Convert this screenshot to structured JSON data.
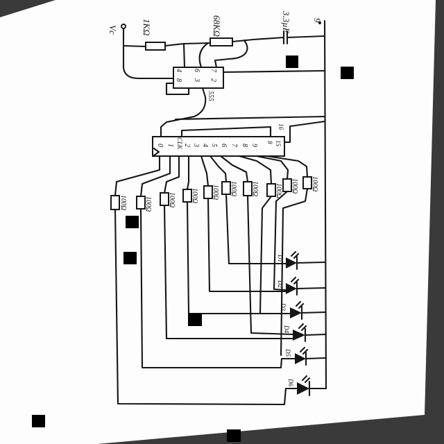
{
  "labels": {
    "vc": "Vc",
    "r_timing_1": "1KΩ",
    "r_timing_2": "68KΩ",
    "cap": "3.3µF",
    "supply": "9"
  },
  "ic555": {
    "name": "555",
    "pins": {
      "p4": "4",
      "p8": "8",
      "p6": "6",
      "p7": "7",
      "p3": "3",
      "p2": "2"
    }
  },
  "ic4017": {
    "clk": "CLK",
    "pin16": "16",
    "pin15": "15",
    "pin8": "8",
    "outputs": [
      "0",
      "1",
      "2",
      "3",
      "4",
      "5",
      "6",
      "7",
      "8",
      "9"
    ]
  },
  "resistors": [
    "100Ω",
    "100Ω",
    "100Ω",
    "100Ω",
    "100Ω",
    "100Ω",
    "100Ω",
    "100Ω",
    "100Ω",
    "100Ω"
  ],
  "leds": [
    "D1",
    "D2",
    "D3",
    "D4",
    "D5",
    "D6"
  ],
  "colors": {
    "ink": "#151515",
    "paper": "#fdfdfd",
    "background": "#3a3a3a"
  }
}
